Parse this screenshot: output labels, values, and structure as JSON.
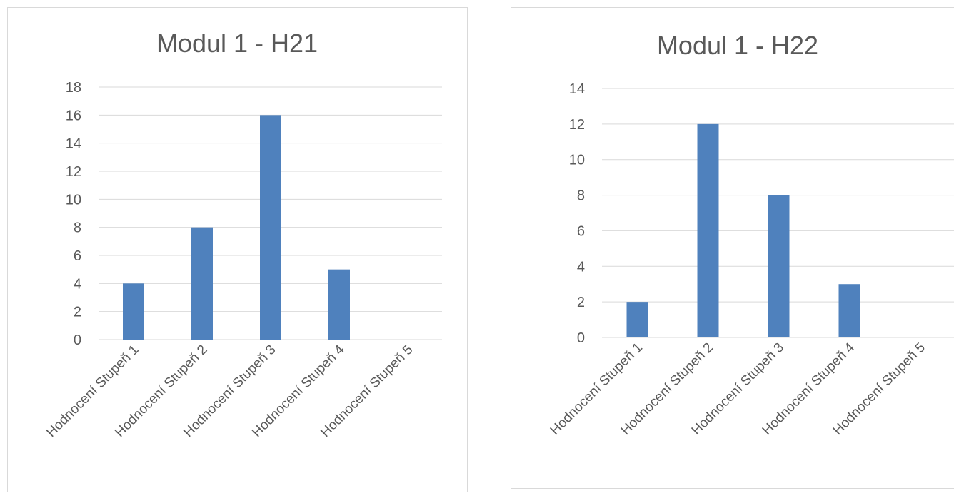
{
  "chart_data": [
    {
      "type": "bar",
      "title": "Modul 1 - H21",
      "categories": [
        "Hodnocení Stupeň 1",
        "Hodnocení Stupeň 2",
        "Hodnocení Stupeň 3",
        "Hodnocení Stupeň 4",
        "Hodnocení Stupeň 5"
      ],
      "values": [
        4,
        8,
        16,
        5,
        0
      ],
      "xlabel": "",
      "ylabel": "",
      "ylim": [
        0,
        18
      ],
      "yticks": [
        0,
        2,
        4,
        6,
        8,
        10,
        12,
        14,
        16,
        18
      ],
      "grid": true,
      "legend": "none",
      "bar_color": "#4f81bd"
    },
    {
      "type": "bar",
      "title": "Modul 1 - H22",
      "categories": [
        "Hodnocení Stupeň 1",
        "Hodnocení Stupeň 2",
        "Hodnocení Stupeň 3",
        "Hodnocení Stupeň 4",
        "Hodnocení Stupeň 5"
      ],
      "values": [
        2,
        12,
        8,
        3,
        0
      ],
      "xlabel": "",
      "ylabel": "",
      "ylim": [
        0,
        14
      ],
      "yticks": [
        0,
        2,
        4,
        6,
        8,
        10,
        12,
        14
      ],
      "grid": true,
      "legend": "none",
      "bar_color": "#4f81bd"
    }
  ]
}
